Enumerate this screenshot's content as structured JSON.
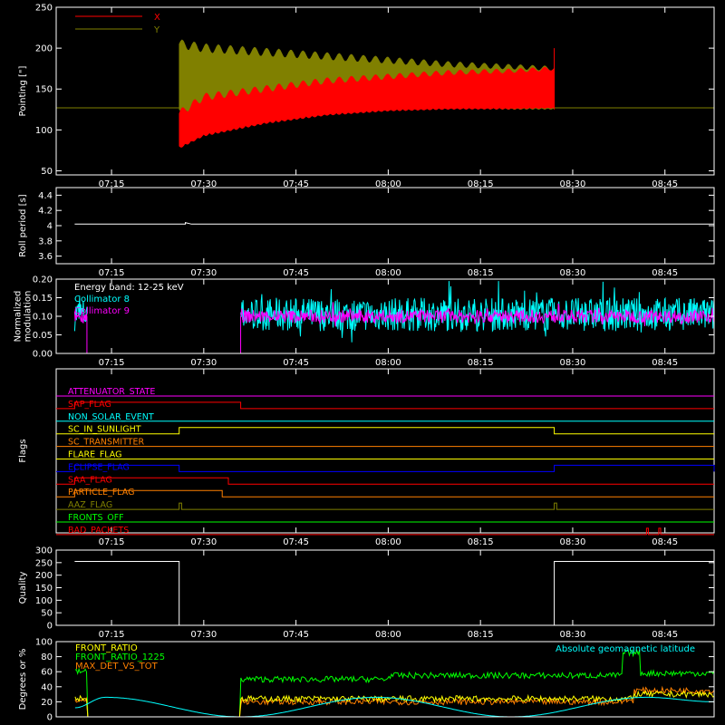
{
  "time_axis": {
    "ticks": [
      "07:15",
      "07:30",
      "07:45",
      "08:00",
      "08:15",
      "08:30",
      "08:45"
    ],
    "tick_minutes": [
      435,
      450,
      465,
      480,
      495,
      510,
      525
    ],
    "range_minutes": [
      426,
      533
    ]
  },
  "chart_data": [
    {
      "id": "pointing",
      "type": "area",
      "ylabel": "Pointing [\"]",
      "ylim": [
        45,
        250
      ],
      "yticks": [
        50,
        100,
        150,
        200,
        250
      ],
      "legend": [
        {
          "name": "X",
          "color": "#ff0000"
        },
        {
          "name": "Y",
          "color": "#808000"
        }
      ],
      "baseline": 127,
      "active_range": [
        "07:26",
        "08:27"
      ],
      "series": [
        {
          "name": "Y",
          "color": "#808000",
          "x": [
            "07:26",
            "07:30",
            "07:40",
            "07:50",
            "08:00",
            "08:10",
            "08:20",
            "08:27"
          ],
          "upper": [
            205,
            200,
            195,
            190,
            185,
            180,
            177,
            175
          ],
          "lower": [
            125,
            127,
            128,
            128,
            128,
            128,
            127,
            127
          ]
        },
        {
          "name": "X",
          "color": "#ff0000",
          "x": [
            "07:26",
            "07:30",
            "07:40",
            "07:50",
            "08:00",
            "08:10",
            "08:20",
            "08:27"
          ],
          "upper": [
            120,
            140,
            150,
            160,
            165,
            170,
            172,
            175
          ],
          "lower": [
            80,
            95,
            110,
            120,
            125,
            127,
            127,
            128
          ]
        }
      ]
    },
    {
      "id": "roll",
      "type": "line",
      "ylabel": "Roll period [s]",
      "ylim": [
        3.5,
        4.5
      ],
      "yticks": [
        3.6,
        3.8,
        4.0,
        4.2,
        4.4
      ],
      "series": [
        {
          "name": "",
          "color": "#ffffff",
          "x": [
            "07:09",
            "07:27",
            "07:27",
            "07:28",
            "08:53"
          ],
          "values": [
            4.02,
            4.02,
            4.04,
            4.02,
            4.02
          ]
        }
      ]
    },
    {
      "id": "modulation",
      "type": "line",
      "ylabel_lines": [
        "Normalized",
        "modulation"
      ],
      "ylim": [
        0,
        0.2
      ],
      "yticks": [
        0.0,
        0.05,
        0.1,
        0.15,
        0.2
      ],
      "ytick_labels": [
        "0.00",
        "0.05",
        "0.10",
        "0.15",
        "0.20"
      ],
      "annotation": "Energy band: 12-25 keV",
      "legend": [
        {
          "name": "Collimator 8",
          "color": "#00ffff"
        },
        {
          "name": "Collimator 9",
          "color": "#ff00ff"
        }
      ],
      "zero_range": [
        "07:11",
        "07:36"
      ],
      "series": [
        {
          "name": "Collimator 8",
          "color": "#00ffff",
          "mean": 0.105,
          "spread": 0.09,
          "segments": [
            [
              "07:09",
              "07:11"
            ],
            [
              "07:36",
              "08:53"
            ]
          ]
        },
        {
          "name": "Collimator 9",
          "color": "#ff00ff",
          "mean": 0.1,
          "spread": 0.035,
          "segments": [
            [
              "07:09",
              "07:11"
            ],
            [
              "07:36",
              "08:53"
            ]
          ]
        }
      ]
    },
    {
      "id": "flags",
      "type": "line",
      "ylabel": "Flags",
      "series": [
        {
          "name": "ATTENUATOR_STATE",
          "color": "#ff00ff",
          "steps": []
        },
        {
          "name": "SAP_FLAG",
          "color": "#ff0000",
          "steps": [
            {
              "from": "07:09",
              "to": "07:36",
              "level": 1
            }
          ]
        },
        {
          "name": "NON_SOLAR_EVENT",
          "color": "#00ffff",
          "steps": []
        },
        {
          "name": "SC_IN_SUNLIGHT",
          "color": "#ffff00",
          "steps": [
            {
              "from": "07:26",
              "to": "08:27",
              "level": 1
            }
          ]
        },
        {
          "name": "SC_TRANSMITTER",
          "color": "#ff8000",
          "steps": []
        },
        {
          "name": "FLARE_FLAG",
          "color": "#ffff00",
          "steps": []
        },
        {
          "name": "ECLIPSE_FLAG",
          "color": "#0000ff",
          "steps": [
            {
              "from": "07:09",
              "to": "07:26",
              "level": 1
            },
            {
              "from": "08:27",
              "to": "08:53",
              "level": 1
            }
          ]
        },
        {
          "name": "SAA_FLAG",
          "color": "#ff0000",
          "steps": [
            {
              "from": "07:09",
              "to": "07:34",
              "level": 1
            }
          ]
        },
        {
          "name": "PARTICLE_FLAG",
          "color": "#ff8000",
          "steps": [
            {
              "from": "07:09",
              "to": "07:33",
              "level": 1
            }
          ]
        },
        {
          "name": "AAZ_FLAG",
          "color": "#808000",
          "steps": [
            {
              "from": "07:26",
              "to": "07:26.4",
              "level": 1
            },
            {
              "from": "08:27",
              "to": "08:27.4",
              "level": 1
            }
          ]
        },
        {
          "name": "FRONTS_OFF",
          "color": "#00ff00",
          "steps": []
        },
        {
          "name": "BAD_PACKETS",
          "color": "#ff0000",
          "steps": [
            {
              "from": "08:42",
              "to": "08:42.3",
              "level": 1
            },
            {
              "from": "08:44",
              "to": "08:44.3",
              "level": 1
            }
          ]
        }
      ]
    },
    {
      "id": "quality",
      "type": "line",
      "ylabel": "Quality",
      "ylim": [
        0,
        300
      ],
      "yticks": [
        0,
        50,
        100,
        150,
        200,
        250,
        300
      ],
      "series": [
        {
          "name": "",
          "color": "#ffffff",
          "x": [
            "07:09",
            "07:26",
            "07:26",
            "08:27",
            "08:27",
            "08:53"
          ],
          "values": [
            255,
            255,
            0,
            0,
            255,
            255
          ]
        }
      ]
    },
    {
      "id": "ratios",
      "type": "line",
      "ylabel": "Degrees or %",
      "ylim": [
        0,
        100
      ],
      "yticks": [
        0,
        20,
        40,
        60,
        80,
        100
      ],
      "legend": [
        {
          "name": "FRONT_RATIO",
          "color": "#ffff00"
        },
        {
          "name": "FRONT_RATIO_1225",
          "color": "#00ff00"
        },
        {
          "name": "MAX_DET_VS_TOT",
          "color": "#ff8000"
        }
      ],
      "annotation": {
        "text": "Absolute geomagnetic latitude",
        "color": "#00ffff"
      },
      "series": [
        {
          "name": "FRONT_RATIO_1225",
          "color": "#00ff00",
          "x": [
            "07:09",
            "07:11",
            "07:36",
            "08:00",
            "08:38",
            "08:38",
            "08:41",
            "08:41",
            "08:53"
          ],
          "values": [
            60,
            62,
            50,
            55,
            55,
            85,
            85,
            58,
            58
          ]
        },
        {
          "name": "MAX_DET_VS_TOT",
          "color": "#ff8000",
          "x": [
            "07:09",
            "07:11",
            "07:36",
            "08:38",
            "08:40",
            "08:53"
          ],
          "values": [
            22,
            22,
            20,
            22,
            35,
            25
          ]
        },
        {
          "name": "FRONT_RATIO",
          "color": "#ffff00",
          "x": [
            "07:09",
            "07:11",
            "07:36",
            "08:38",
            "08:40",
            "08:53"
          ],
          "values": [
            25,
            25,
            24,
            24,
            30,
            27
          ]
        },
        {
          "name": "Absolute geomagnetic latitude",
          "color": "#00ffff",
          "x": [
            "07:09",
            "07:14",
            "07:36",
            "07:58",
            "08:20",
            "08:42",
            "08:53"
          ],
          "values": [
            12,
            26,
            0,
            26,
            0,
            26,
            20
          ]
        }
      ]
    }
  ]
}
